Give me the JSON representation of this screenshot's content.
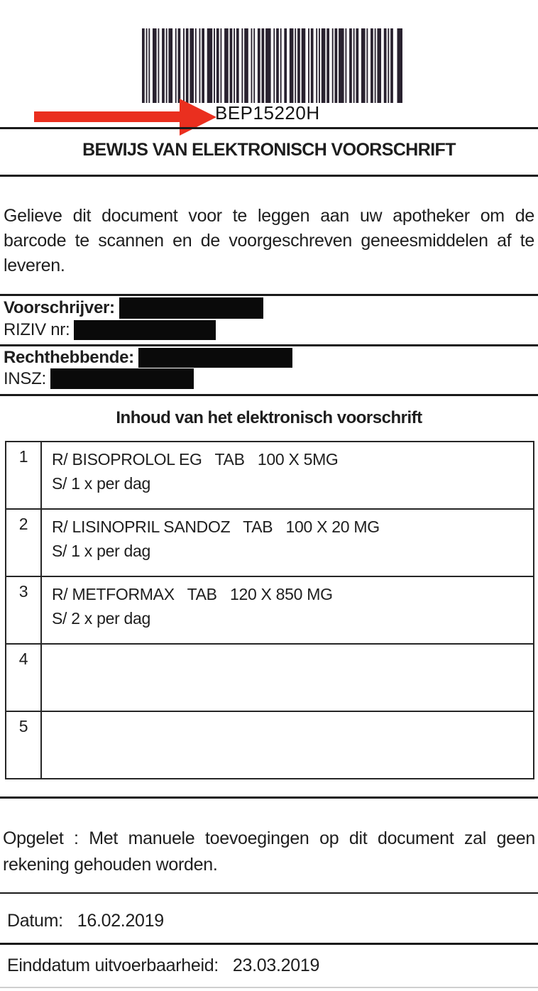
{
  "doc": {
    "barcode": {
      "value": "BEP15220H"
    },
    "title": "BEWIJS VAN ELEKTRONISCH VOORSCHRIFT",
    "intro": {
      "line1": "Gelieve dit document voor te leggen aan uw apotheker om de",
      "line2": "barcode te scannen en de voorgeschreven geneesmiddelen af te",
      "line3": "leveren."
    },
    "prescriber": {
      "label": "Voorschrijver:",
      "riziv_label": "RIZIV nr:"
    },
    "beneficiary": {
      "label": "Rechthebbende:",
      "insz_label": "INSZ:"
    },
    "table": {
      "heading": "Inhoud van het elektronisch voorschrift",
      "rows": [
        {
          "num": "1",
          "line1": "R/ BISOPROLOL EG   TAB   100 X 5MG",
          "line2": "S/ 1 x per dag"
        },
        {
          "num": "2",
          "line1": "R/ LISINOPRIL SANDOZ   TAB   100 X 20 MG",
          "line2": "S/ 1 x per dag"
        },
        {
          "num": "3",
          "line1": "R/ METFORMAX   TAB   120 X 850 MG",
          "line2": "S/ 2 x per dag"
        },
        {
          "num": "4",
          "line1": "",
          "line2": ""
        },
        {
          "num": "5",
          "line1": "",
          "line2": ""
        }
      ]
    },
    "warning": {
      "line1": "Opgelet : Met manuele toevoegingen op dit document zal geen",
      "line2": "rekening gehouden worden."
    },
    "dates": {
      "date_label": "Datum:",
      "date_value": "16.02.2019",
      "end_label": "Einddatum uitvoerbaarheid:",
      "end_value": "23.03.2019"
    },
    "colors": {
      "arrow_red": "#ea2f1f",
      "ink": "#1e1e1e",
      "barcode_ink": "#29222f"
    }
  }
}
